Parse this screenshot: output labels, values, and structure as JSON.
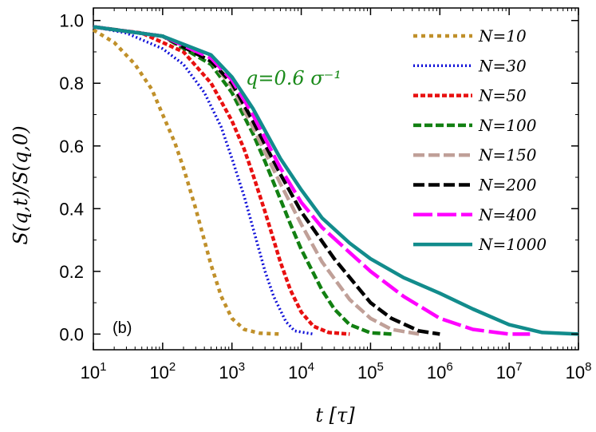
{
  "chart_data": {
    "type": "line",
    "title": "",
    "xlabel": "t [τ]",
    "ylabel": "S(q,t)/S(q,0)",
    "xscale": "log",
    "xlim": [
      10,
      100000000
    ],
    "ylim": [
      -0.05,
      1.04
    ],
    "x_ticks": [
      {
        "base": "10",
        "exp": "1"
      },
      {
        "base": "10",
        "exp": "2"
      },
      {
        "base": "10",
        "exp": "3"
      },
      {
        "base": "10",
        "exp": "4"
      },
      {
        "base": "10",
        "exp": "5"
      },
      {
        "base": "10",
        "exp": "6"
      },
      {
        "base": "10",
        "exp": "7"
      },
      {
        "base": "10",
        "exp": "8"
      }
    ],
    "y_ticks": [
      "0.0",
      "0.2",
      "0.4",
      "0.6",
      "0.8",
      "1.0"
    ],
    "annotation": "q=0.6 σ⁻¹",
    "panel_label": "(b)",
    "legend_position": "top-right",
    "series": [
      {
        "name": "N=10",
        "color": "#c0902a",
        "dash": "5,5",
        "width": 4.5,
        "points": [
          [
            10,
            0.97
          ],
          [
            20,
            0.93
          ],
          [
            40,
            0.86
          ],
          [
            70,
            0.78
          ],
          [
            100,
            0.7
          ],
          [
            150,
            0.61
          ],
          [
            200,
            0.53
          ],
          [
            300,
            0.4
          ],
          [
            500,
            0.22
          ],
          [
            700,
            0.12
          ],
          [
            1000,
            0.05
          ],
          [
            1500,
            0.015
          ],
          [
            2500,
            0.003
          ],
          [
            5000,
            0.0
          ]
        ]
      },
      {
        "name": "N=30",
        "color": "#1010d8",
        "dash": "2,3",
        "width": 3.5,
        "points": [
          [
            10,
            0.98
          ],
          [
            30,
            0.96
          ],
          [
            100,
            0.91
          ],
          [
            200,
            0.86
          ],
          [
            400,
            0.77
          ],
          [
            700,
            0.66
          ],
          [
            1000,
            0.56
          ],
          [
            1500,
            0.44
          ],
          [
            2000,
            0.34
          ],
          [
            3000,
            0.2
          ],
          [
            4000,
            0.12
          ],
          [
            6000,
            0.04
          ],
          [
            8000,
            0.01
          ],
          [
            15000,
            0.0
          ]
        ]
      },
      {
        "name": "N=50",
        "color": "#e81010",
        "dash": "6,3",
        "width": 4.5,
        "points": [
          [
            10,
            0.98
          ],
          [
            50,
            0.96
          ],
          [
            200,
            0.9
          ],
          [
            500,
            0.8
          ],
          [
            1000,
            0.68
          ],
          [
            1500,
            0.59
          ],
          [
            2000,
            0.51
          ],
          [
            3000,
            0.39
          ],
          [
            5000,
            0.23
          ],
          [
            7000,
            0.14
          ],
          [
            10000,
            0.07
          ],
          [
            15000,
            0.025
          ],
          [
            25000,
            0.005
          ],
          [
            50000,
            0.0
          ]
        ]
      },
      {
        "name": "N=100",
        "color": "#128012",
        "dash": "10,4",
        "width": 4.5,
        "points": [
          [
            10,
            0.98
          ],
          [
            100,
            0.95
          ],
          [
            500,
            0.86
          ],
          [
            1000,
            0.77
          ],
          [
            2000,
            0.64
          ],
          [
            3000,
            0.55
          ],
          [
            5000,
            0.43
          ],
          [
            7000,
            0.35
          ],
          [
            10000,
            0.27
          ],
          [
            20000,
            0.14
          ],
          [
            30000,
            0.08
          ],
          [
            50000,
            0.03
          ],
          [
            100000,
            0.004
          ],
          [
            200000,
            0.0
          ]
        ]
      },
      {
        "name": "N=150",
        "color": "#c0a098",
        "dash": "14,5",
        "width": 4.5,
        "points": [
          [
            10,
            0.98
          ],
          [
            100,
            0.95
          ],
          [
            500,
            0.87
          ],
          [
            1000,
            0.79
          ],
          [
            2000,
            0.66
          ],
          [
            5000,
            0.48
          ],
          [
            10000,
            0.35
          ],
          [
            20000,
            0.23
          ],
          [
            50000,
            0.11
          ],
          [
            100000,
            0.05
          ],
          [
            200000,
            0.015
          ],
          [
            500000,
            0.0
          ]
        ]
      },
      {
        "name": "N=200",
        "color": "#000000",
        "dash": "14,5",
        "width": 4.5,
        "points": [
          [
            10,
            0.98
          ],
          [
            100,
            0.95
          ],
          [
            500,
            0.87
          ],
          [
            1000,
            0.8
          ],
          [
            2000,
            0.68
          ],
          [
            5000,
            0.51
          ],
          [
            10000,
            0.39
          ],
          [
            30000,
            0.24
          ],
          [
            100000,
            0.1
          ],
          [
            200000,
            0.05
          ],
          [
            500000,
            0.01
          ],
          [
            1000000,
            0.0
          ]
        ]
      },
      {
        "name": "N=400",
        "color": "#ff00ff",
        "dash": "24,6",
        "width": 4.5,
        "points": [
          [
            10,
            0.98
          ],
          [
            100,
            0.95
          ],
          [
            500,
            0.88
          ],
          [
            1000,
            0.81
          ],
          [
            2000,
            0.7
          ],
          [
            5000,
            0.53
          ],
          [
            10000,
            0.42
          ],
          [
            20000,
            0.34
          ],
          [
            50000,
            0.26
          ],
          [
            100000,
            0.2
          ],
          [
            300000,
            0.12
          ],
          [
            1000000,
            0.05
          ],
          [
            3000000,
            0.015
          ],
          [
            10000000,
            0.0
          ],
          [
            20000000,
            0.0
          ]
        ]
      },
      {
        "name": "N=1000",
        "color": "#128c8c",
        "dash": "",
        "width": 4.5,
        "points": [
          [
            10,
            0.98
          ],
          [
            100,
            0.95
          ],
          [
            500,
            0.89
          ],
          [
            1000,
            0.82
          ],
          [
            2000,
            0.72
          ],
          [
            5000,
            0.56
          ],
          [
            10000,
            0.46
          ],
          [
            20000,
            0.37
          ],
          [
            50000,
            0.29
          ],
          [
            100000,
            0.24
          ],
          [
            300000,
            0.18
          ],
          [
            1000000,
            0.13
          ],
          [
            3000000,
            0.08
          ],
          [
            10000000,
            0.03
          ],
          [
            30000000,
            0.005
          ],
          [
            100000000,
            0.0
          ]
        ]
      }
    ]
  }
}
